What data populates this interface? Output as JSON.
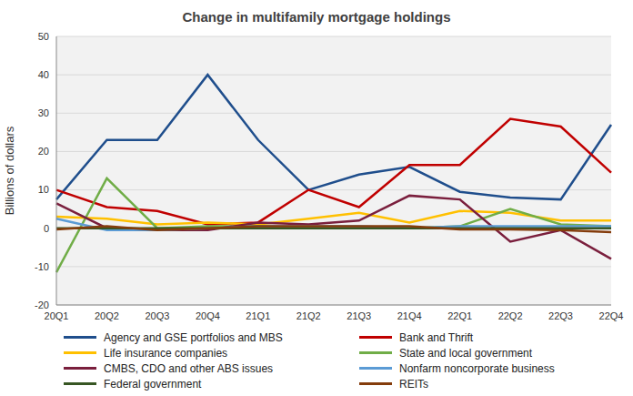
{
  "chart_data": {
    "type": "line",
    "title": "Change in multifamily mortgage holdings",
    "y_label": "Billions of dollars",
    "categories": [
      "20Q1",
      "20Q2",
      "20Q3",
      "20Q4",
      "21Q1",
      "21Q2",
      "21Q3",
      "21Q4",
      "22Q1",
      "22Q2",
      "22Q3",
      "22Q4"
    ],
    "series": [
      {
        "name": "Agency and GSE portfolios and MBS",
        "color": "#1f4e8c",
        "values": [
          7.5,
          23,
          23,
          40,
          23,
          10,
          14,
          16,
          9.5,
          8,
          7.5,
          27
        ]
      },
      {
        "name": "Bank and Thrift",
        "color": "#c00000",
        "values": [
          10,
          5.5,
          4.5,
          1,
          1.5,
          10,
          5.5,
          16.5,
          16.5,
          28.5,
          26.5,
          14.5
        ]
      },
      {
        "name": "Life insurance companies",
        "color": "#ffc000",
        "values": [
          3,
          2.5,
          1,
          1.5,
          1,
          2.5,
          4,
          1.5,
          4.5,
          4,
          2,
          2
        ]
      },
      {
        "name": "State and local government",
        "color": "#70ad47",
        "values": [
          -11.5,
          13,
          0,
          0.5,
          0.5,
          0,
          0,
          0,
          0.5,
          5,
          1,
          0.5
        ]
      },
      {
        "name": "CMBS, CDO and other ABS issues",
        "color": "#7a1f3d",
        "values": [
          6.5,
          0,
          -0.5,
          -0.5,
          1.5,
          1,
          2,
          8.5,
          7.5,
          -3.5,
          -0.5,
          -8
        ]
      },
      {
        "name": "Nonfarm noncorporate business",
        "color": "#5b9bd5",
        "values": [
          2.5,
          -0.5,
          -0.5,
          0,
          0.5,
          0.5,
          0.5,
          0,
          0.5,
          0.5,
          0.5,
          0.5
        ]
      },
      {
        "name": "Federal government",
        "color": "#375623",
        "values": [
          0,
          0,
          0,
          0,
          0,
          0,
          0,
          0,
          0,
          0,
          0,
          0
        ]
      },
      {
        "name": "REITs",
        "color": "#843c0c",
        "values": [
          -0.3,
          0.5,
          -0.5,
          0,
          0.5,
          0.5,
          0.5,
          0.5,
          -0.3,
          -0.3,
          -0.5,
          -1
        ]
      }
    ],
    "ylim": [
      -20,
      50
    ],
    "yticks": [
      -20,
      -10,
      0,
      10,
      20,
      30,
      40,
      50
    ],
    "grid": true,
    "legend": "bottom",
    "marker": "none"
  }
}
